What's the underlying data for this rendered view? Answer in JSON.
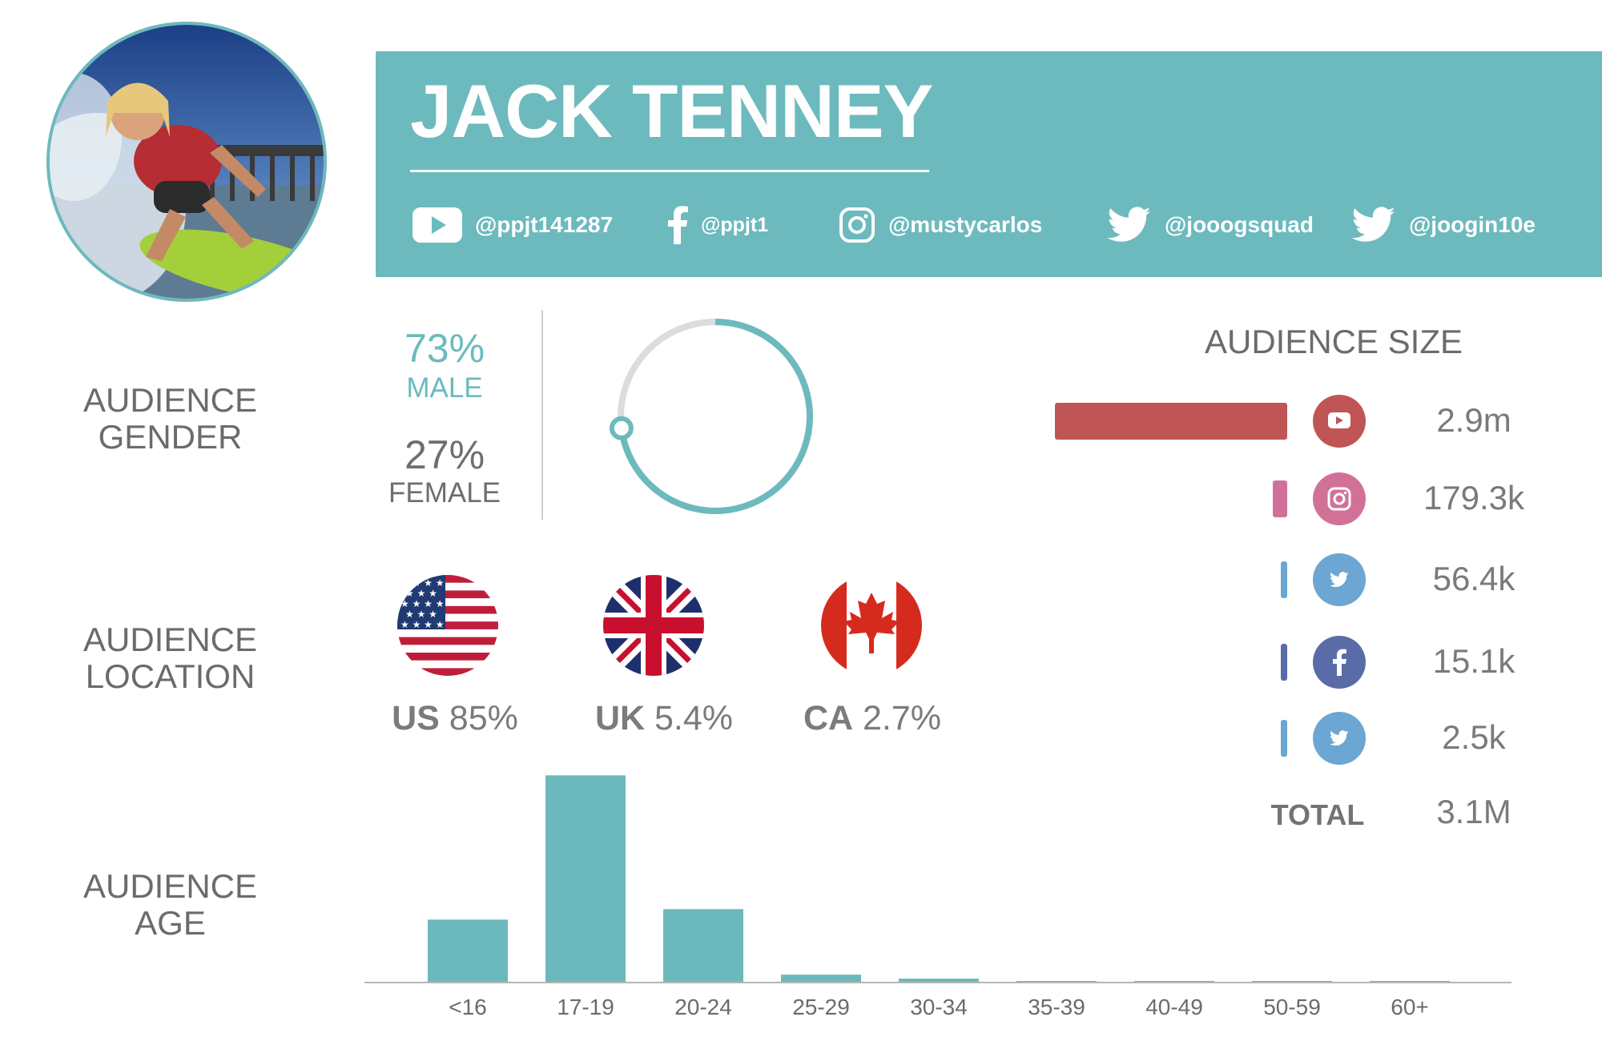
{
  "profile": {
    "name": "JACK TENNEY",
    "socials": [
      {
        "platform": "youtube-icon",
        "handle": "@ppjt141287"
      },
      {
        "platform": "facebook-icon",
        "handle": "@ppjt1"
      },
      {
        "platform": "instagram-icon",
        "handle": "@mustycarlos"
      },
      {
        "platform": "twitter-icon",
        "handle": "@jooogsquad"
      },
      {
        "platform": "twitter-icon",
        "handle": "@joogin10e"
      }
    ]
  },
  "gender": {
    "label_line1": "AUDIENCE",
    "label_line2": "GENDER",
    "male_pct": "73%",
    "male_label": "MALE",
    "female_pct": "27%",
    "female_label": "FEMALE",
    "male_fraction": 0.73
  },
  "location": {
    "label_line1": "AUDIENCE",
    "label_line2": "LOCATION",
    "countries": [
      {
        "code": "US",
        "pct": "85%",
        "flag": "us-flag-icon"
      },
      {
        "code": "UK",
        "pct": "5.4%",
        "flag": "uk-flag-icon"
      },
      {
        "code": "CA",
        "pct": "2.7%",
        "flag": "canada-flag-icon"
      }
    ]
  },
  "audience_size": {
    "title": "AUDIENCE SIZE",
    "rows": [
      {
        "platform": "youtube-icon",
        "value": "2.9m",
        "amount": 2900000,
        "color": "#c05556"
      },
      {
        "platform": "instagram-icon",
        "value": "179.3k",
        "amount": 179300,
        "color": "#d27197"
      },
      {
        "platform": "twitter-icon",
        "value": "56.4k",
        "amount": 56400,
        "color": "#6ca6d2"
      },
      {
        "platform": "facebook-icon",
        "value": "15.1k",
        "amount": 15100,
        "color": "#5a6ca7"
      },
      {
        "platform": "twitter-icon",
        "value": "2.5k",
        "amount": 2500,
        "color": "#6ca6d2"
      }
    ],
    "total_label": "TOTAL",
    "total_value": "3.1M"
  },
  "age": {
    "label_line1": "AUDIENCE",
    "label_line2": "AGE"
  },
  "chart_data": {
    "type": "bar",
    "categories": [
      "<16",
      "17-19",
      "20-24",
      "25-29",
      "30-34",
      "35-39",
      "40-49",
      "50-59",
      "60+"
    ],
    "values": [
      24,
      79,
      28,
      3,
      1.5,
      0.6,
      0.4,
      0.3,
      0.3
    ],
    "ylim": [
      0,
      80
    ],
    "color": "#6cb9bd",
    "grid": false
  },
  "colors": {
    "teal": "#6cbabe",
    "text_gray": "#6e6e6e",
    "ring_track": "#dcdcdc"
  }
}
